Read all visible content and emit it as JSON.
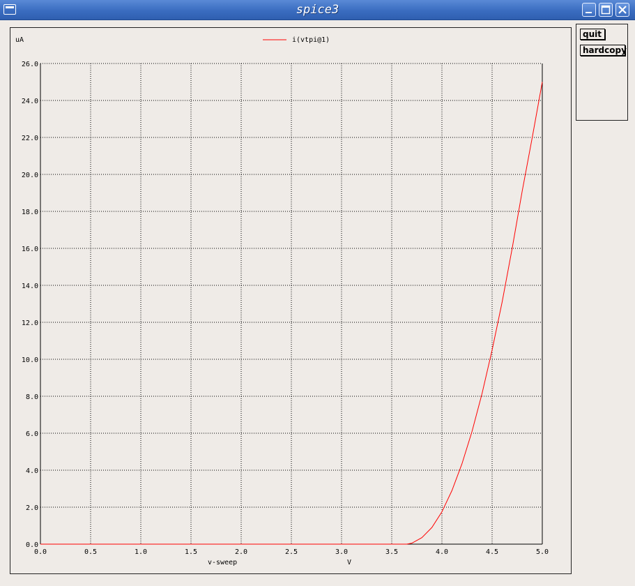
{
  "window": {
    "title": "spice3"
  },
  "buttons": {
    "quit": "quit",
    "hardcopy": "hardcopy"
  },
  "chart_data": {
    "type": "line",
    "title": "",
    "ylabel_unit": "uA",
    "xlabel": "v-sweep",
    "xunit": "V",
    "xlim": [
      0,
      5
    ],
    "ylim": [
      0,
      26
    ],
    "grid": true,
    "legend_position": "top-center",
    "x_ticks": [
      0,
      0.5,
      1,
      1.5,
      2,
      2.5,
      3,
      3.5,
      4,
      4.5,
      5
    ],
    "y_ticks": [
      0,
      2,
      4,
      6,
      8,
      10,
      12,
      14,
      16,
      18,
      20,
      22,
      24,
      26
    ],
    "x_tick_labels": [
      "0.0",
      "0.5",
      "1.0",
      "1.5",
      "2.0",
      "2.5",
      "3.0",
      "3.5",
      "4.0",
      "4.5",
      "5.0"
    ],
    "y_tick_labels": [
      "0.0",
      "2.0",
      "4.0",
      "6.0",
      "8.0",
      "10.0",
      "12.0",
      "14.0",
      "16.0",
      "18.0",
      "20.0",
      "22.0",
      "24.0",
      "26.0"
    ],
    "series": [
      {
        "name": "i(vtpi@1)",
        "color": "#ff0000",
        "x": [
          0,
          3.5,
          3.65,
          3.7,
          3.8,
          3.9,
          4.0,
          4.1,
          4.2,
          4.3,
          4.4,
          4.5,
          4.6,
          4.7,
          4.8,
          4.9,
          5.0
        ],
        "y": [
          0,
          0,
          0,
          0.05,
          0.35,
          0.9,
          1.75,
          2.9,
          4.35,
          6.1,
          8.15,
          10.5,
          13.1,
          16.0,
          19.1,
          22.0,
          25.0
        ]
      }
    ]
  }
}
